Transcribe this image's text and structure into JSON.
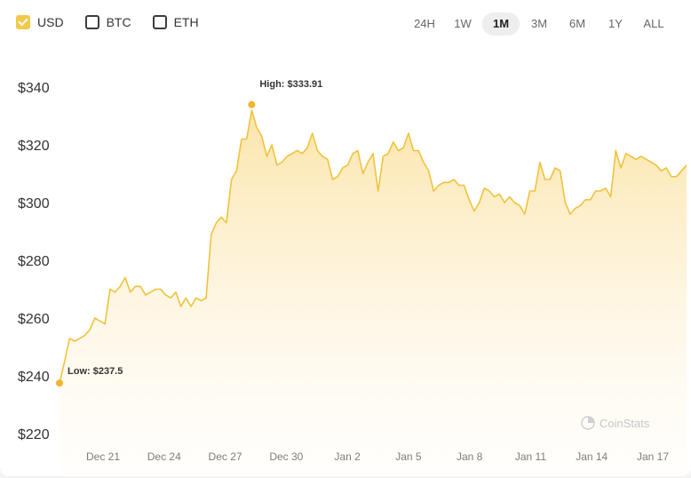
{
  "currencies": [
    {
      "label": "USD",
      "checked": true
    },
    {
      "label": "BTC",
      "checked": false
    },
    {
      "label": "ETH",
      "checked": false
    }
  ],
  "ranges": [
    "24H",
    "1W",
    "1M",
    "3M",
    "6M",
    "1Y",
    "ALL"
  ],
  "active_range": "1M",
  "watermark": "CoinStats",
  "colors": {
    "accent": "#f2c94c",
    "line": "#f0c33c",
    "fill_top": "#fbe3a4",
    "marker": "#f2b62c"
  },
  "chart_data": {
    "type": "area",
    "title": "",
    "xlabel": "",
    "ylabel": "",
    "ylim": [
      220,
      340
    ],
    "yticks": [
      340,
      320,
      300,
      280,
      260,
      240,
      220
    ],
    "ytick_labels": [
      "$340",
      "$320",
      "$300",
      "$280",
      "$260",
      "$240",
      "$220"
    ],
    "xlim": [
      0,
      31
    ],
    "xticks": [
      2,
      5,
      8,
      11,
      14,
      17,
      20,
      23,
      26,
      29
    ],
    "xtick_labels": [
      "Dec 21",
      "Dec 24",
      "Dec 27",
      "Dec 30",
      "Jan 2",
      "Jan 5",
      "Jan 8",
      "Jan 11",
      "Jan 14",
      "Jan 17"
    ],
    "series": [
      {
        "values": [
          237.5,
          245,
          253,
          252,
          253,
          254,
          256,
          260,
          259,
          258,
          270,
          269,
          271,
          274,
          269,
          271,
          271,
          268,
          269,
          270,
          270,
          268,
          267,
          269,
          264,
          267,
          264,
          267,
          266,
          267,
          289,
          293,
          295,
          293,
          308,
          311,
          322,
          322,
          332,
          326,
          323,
          316,
          320,
          313,
          314,
          316,
          317,
          318,
          317,
          319,
          324,
          318,
          316,
          315,
          308,
          309,
          312,
          313,
          317,
          318,
          310,
          314,
          317,
          304,
          316,
          317,
          321,
          318,
          319,
          324,
          318,
          318,
          314,
          311,
          304,
          306,
          307,
          307,
          308,
          306,
          306,
          301,
          297,
          300,
          305,
          304,
          302,
          303,
          300,
          302,
          300,
          299,
          296,
          304,
          304,
          314,
          308,
          308,
          312,
          311,
          300,
          296,
          298,
          299,
          301,
          301,
          304,
          304,
          305,
          302,
          318,
          312,
          317,
          316,
          315,
          316,
          315,
          314,
          313,
          311,
          312,
          309,
          309,
          311,
          313
        ]
      }
    ],
    "annotations": [
      {
        "label": "High: $333.91",
        "value": 333.91
      },
      {
        "label": "Low: $237.5",
        "value": 237.5
      }
    ]
  }
}
